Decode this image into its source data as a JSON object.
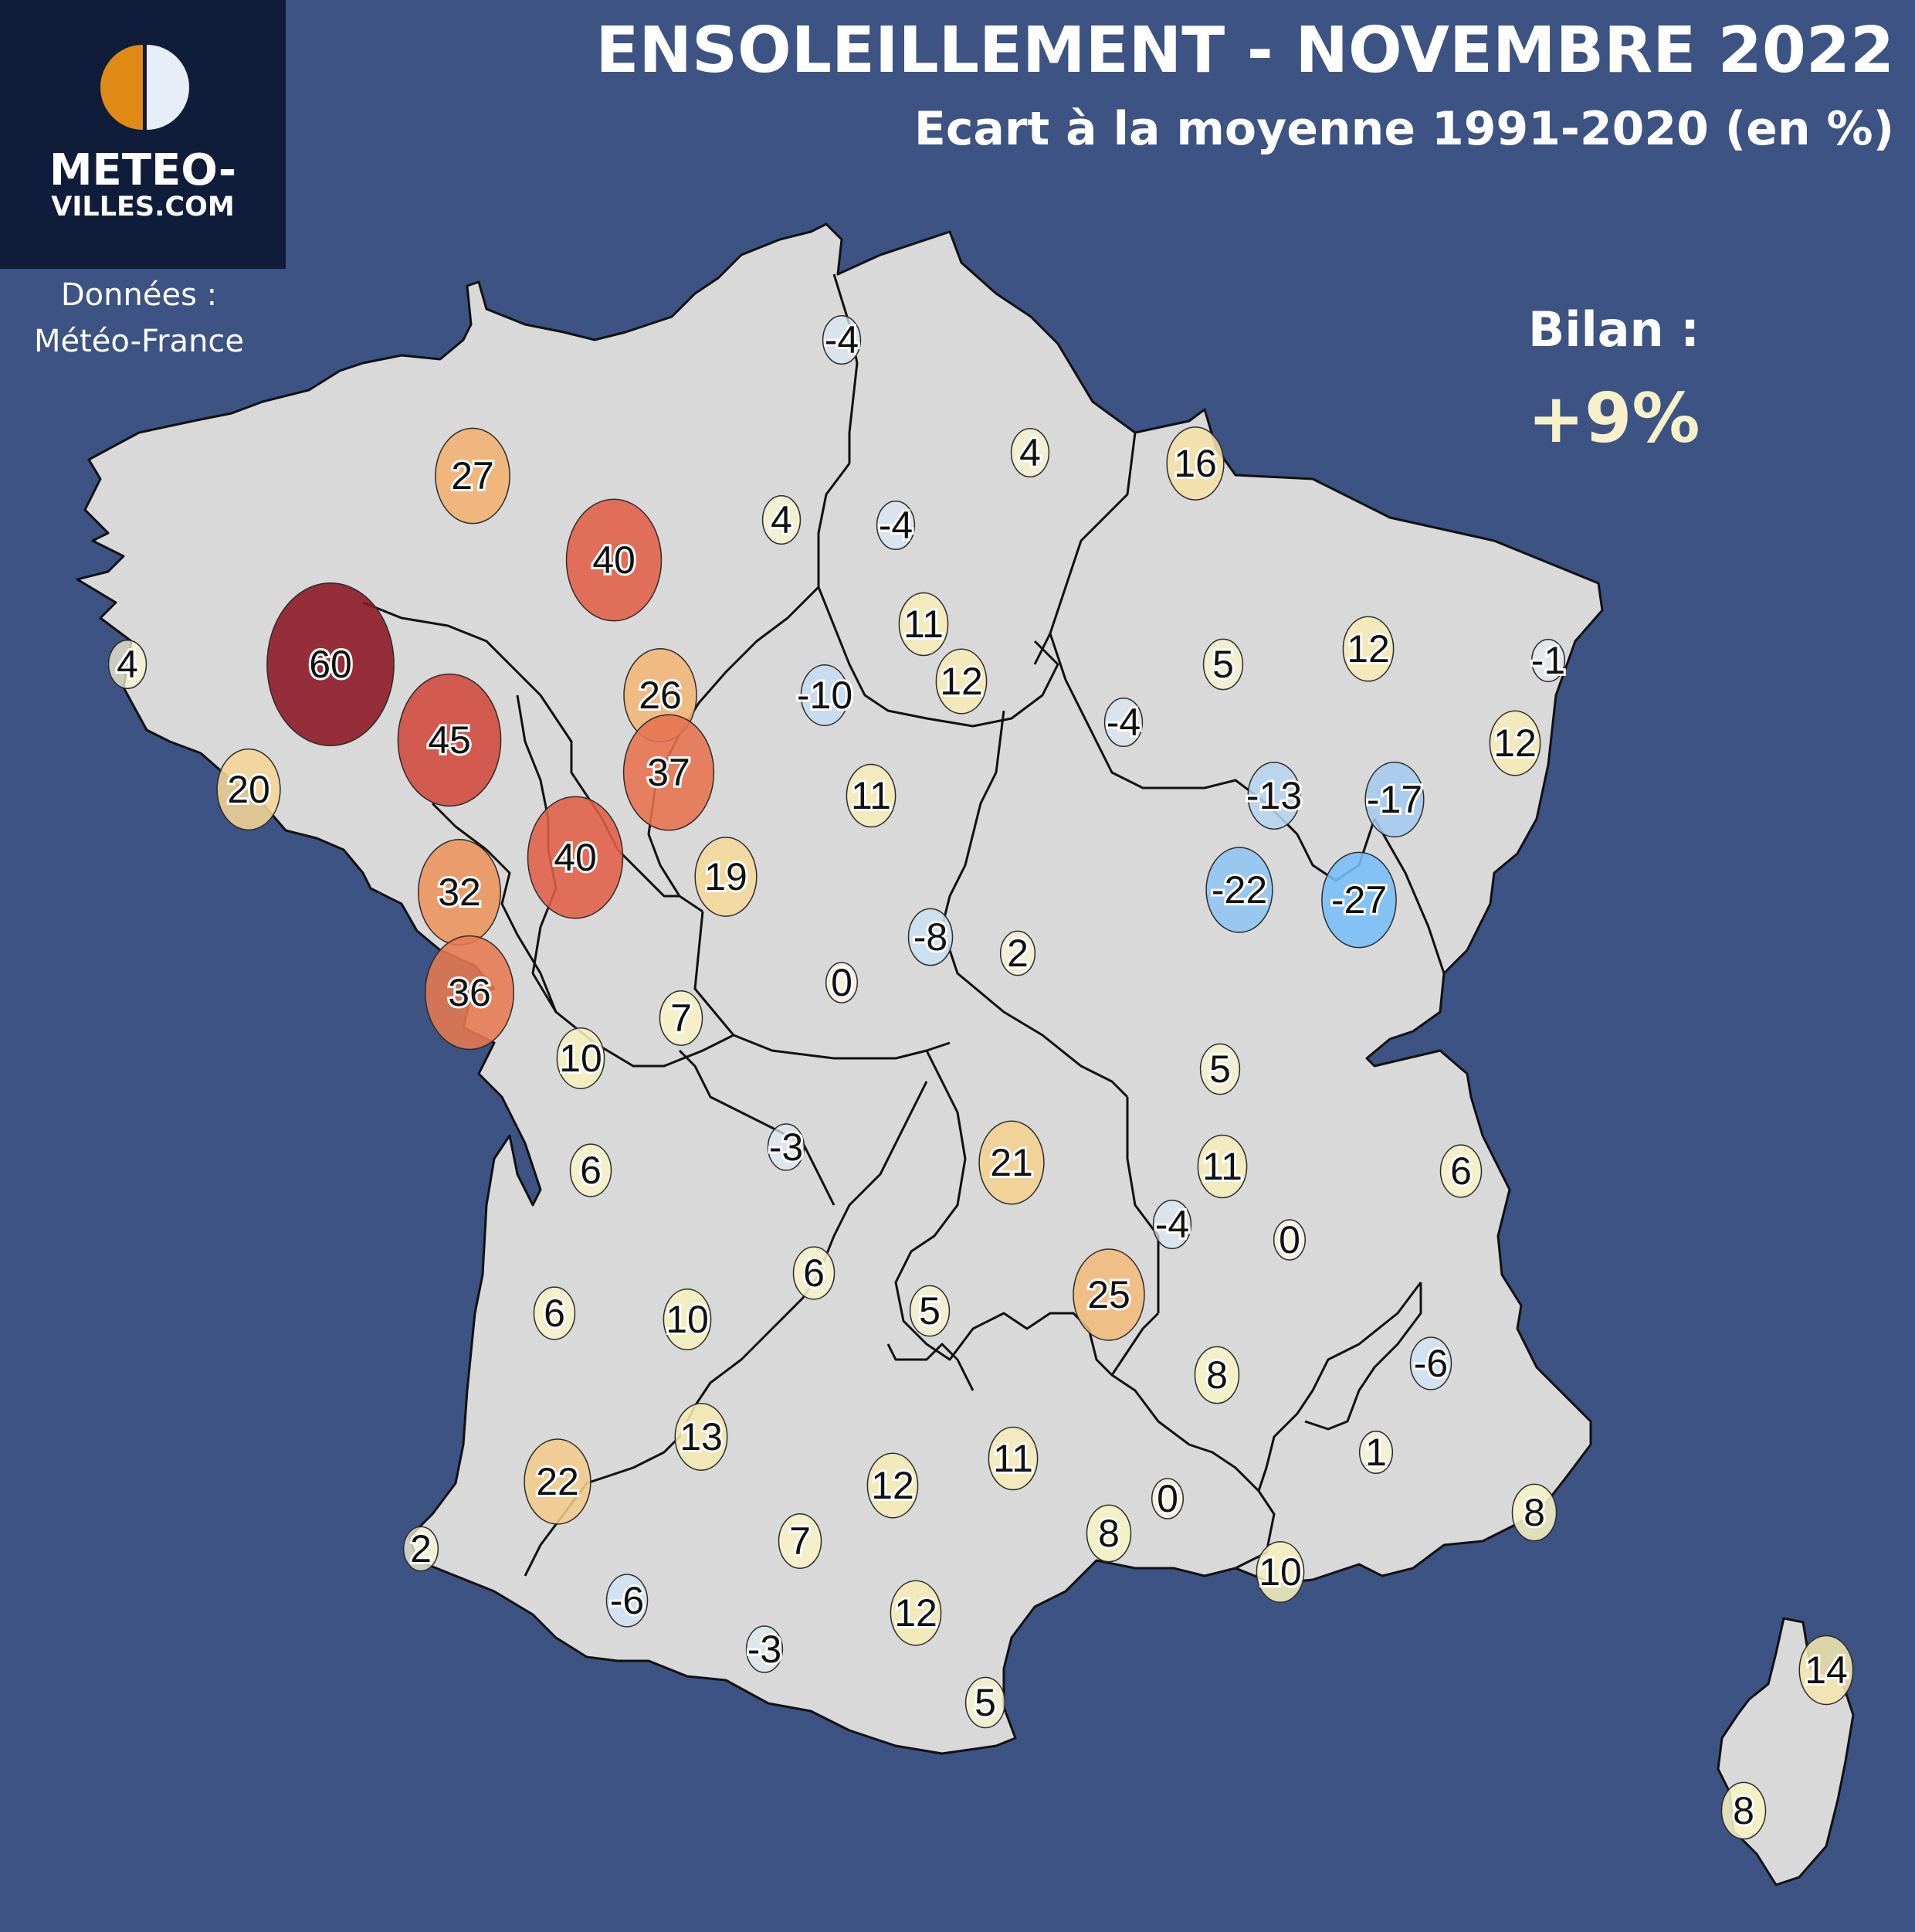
{
  "header": {
    "title": "ENSOLEILLEMENT - NOVEMBRE 2022",
    "subtitle": "Ecart à la moyenne 1991-2020 (en %)"
  },
  "logo": {
    "line1": "METEO-",
    "line2": "VILLES.COM",
    "colors": {
      "sun": "#e08a16",
      "moon": "#e8eef8",
      "background": "#0f1d3b"
    }
  },
  "source": {
    "line1": "Données :",
    "line2": "Météo-France"
  },
  "bilan": {
    "label": "Bilan :",
    "value": "+9%"
  },
  "colors": {
    "background": "#3c5383",
    "land": "#d9d9d9",
    "border": "#111111",
    "scale": {
      "min": -27,
      "max": 60
    }
  },
  "stations": [
    {
      "value": "-4",
      "v": -4
    },
    {
      "value": "27",
      "v": 27
    },
    {
      "value": "4",
      "v": 4
    },
    {
      "value": "16",
      "v": 16
    },
    {
      "value": "4",
      "v": 4
    },
    {
      "value": "-4",
      "v": -4
    },
    {
      "value": "40",
      "v": 40
    },
    {
      "value": "60",
      "v": 60
    },
    {
      "value": "4",
      "v": 4
    },
    {
      "value": "11",
      "v": 11
    },
    {
      "value": "12",
      "v": 12
    },
    {
      "value": "26",
      "v": 26
    },
    {
      "value": "-10",
      "v": -10
    },
    {
      "value": "5",
      "v": 5
    },
    {
      "value": "12",
      "v": 12
    },
    {
      "value": "-1",
      "v": -1
    },
    {
      "value": "45",
      "v": 45
    },
    {
      "value": "20",
      "v": 20
    },
    {
      "value": "37",
      "v": 37
    },
    {
      "value": "-4",
      "v": -4
    },
    {
      "value": "12",
      "v": 12
    },
    {
      "value": "11",
      "v": 11
    },
    {
      "value": "-13",
      "v": -13
    },
    {
      "value": "-17",
      "v": -17
    },
    {
      "value": "40",
      "v": 40
    },
    {
      "value": "19",
      "v": 19
    },
    {
      "value": "32",
      "v": 32
    },
    {
      "value": "-22",
      "v": -22
    },
    {
      "value": "-27",
      "v": -27
    },
    {
      "value": "-8",
      "v": -8
    },
    {
      "value": "2",
      "v": 2
    },
    {
      "value": "36",
      "v": 36
    },
    {
      "value": "0",
      "v": 0
    },
    {
      "value": "7",
      "v": 7
    },
    {
      "value": "10",
      "v": 10
    },
    {
      "value": "5",
      "v": 5
    },
    {
      "value": "-3",
      "v": -3
    },
    {
      "value": "6",
      "v": 6
    },
    {
      "value": "21",
      "v": 21
    },
    {
      "value": "11",
      "v": 11
    },
    {
      "value": "6",
      "v": 6
    },
    {
      "value": "-4",
      "v": -4
    },
    {
      "value": "0",
      "v": 0
    },
    {
      "value": "6",
      "v": 6
    },
    {
      "value": "6",
      "v": 6
    },
    {
      "value": "10",
      "v": 10
    },
    {
      "value": "5",
      "v": 5
    },
    {
      "value": "25",
      "v": 25
    },
    {
      "value": "8",
      "v": 8
    },
    {
      "value": "-6",
      "v": -6
    },
    {
      "value": "13",
      "v": 13
    },
    {
      "value": "11",
      "v": 11
    },
    {
      "value": "22",
      "v": 22
    },
    {
      "value": "12",
      "v": 12
    },
    {
      "value": "1",
      "v": 1
    },
    {
      "value": "0",
      "v": 0
    },
    {
      "value": "8",
      "v": 8
    },
    {
      "value": "7",
      "v": 7
    },
    {
      "value": "8",
      "v": 8
    },
    {
      "value": "2",
      "v": 2
    },
    {
      "value": "10",
      "v": 10
    },
    {
      "value": "-6",
      "v": -6
    },
    {
      "value": "12",
      "v": 12
    },
    {
      "value": "-3",
      "v": -3
    },
    {
      "value": "14",
      "v": 14
    },
    {
      "value": "5",
      "v": 5
    },
    {
      "value": "8",
      "v": 8
    }
  ]
}
